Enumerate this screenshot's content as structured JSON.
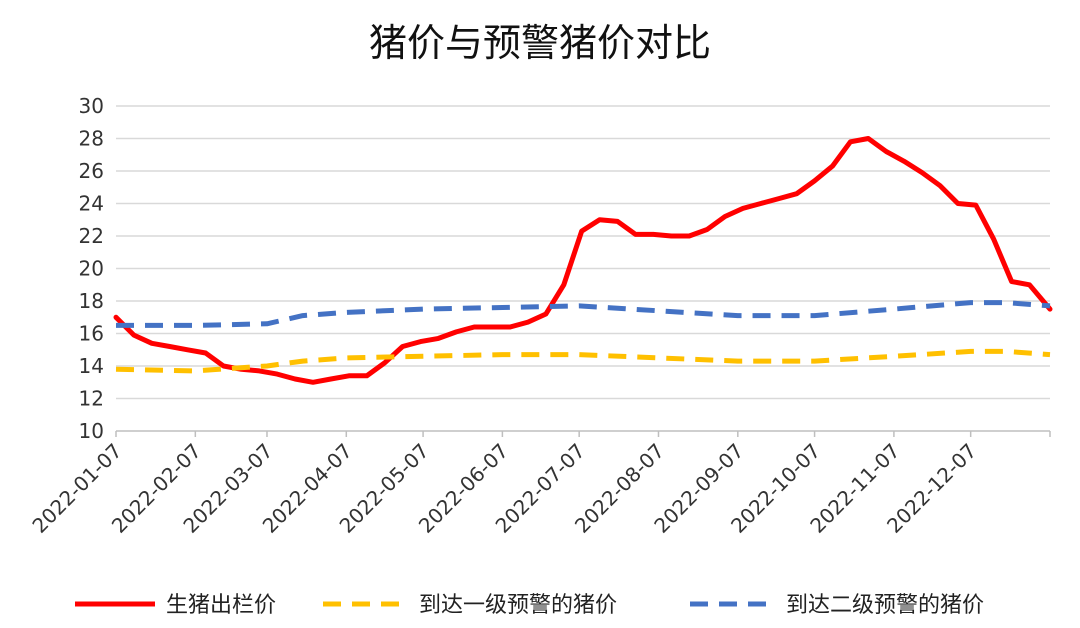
{
  "chart_data": {
    "type": "line",
    "title": "猪价与预警猪价对比",
    "xlabel": "",
    "ylabel": "",
    "ylim": [
      10,
      30
    ],
    "yticks": [
      10,
      12,
      14,
      16,
      18,
      20,
      22,
      24,
      26,
      28,
      30
    ],
    "x_ticks": [
      "2022-01-07",
      "2022-02-07",
      "2022-03-07",
      "2022-04-07",
      "2022-05-07",
      "2022-06-07",
      "2022-07-07",
      "2022-08-07",
      "2022-09-07",
      "2022-10-07",
      "2022-11-07",
      "2022-12-07"
    ],
    "xlim": [
      "2022-01-07",
      "2023-01-07"
    ],
    "grid": "horizontal",
    "legend_position": "bottom",
    "series": [
      {
        "name": "生猪出栏价",
        "color": "#ff0000",
        "style": "solid",
        "points": [
          [
            "2022-01-07",
            17.0
          ],
          [
            "2022-01-14",
            15.9
          ],
          [
            "2022-01-21",
            15.4
          ],
          [
            "2022-01-28",
            15.2
          ],
          [
            "2022-02-04",
            15.0
          ],
          [
            "2022-02-11",
            14.8
          ],
          [
            "2022-02-18",
            14.0
          ],
          [
            "2022-02-25",
            13.8
          ],
          [
            "2022-03-04",
            13.7
          ],
          [
            "2022-03-11",
            13.5
          ],
          [
            "2022-03-18",
            13.2
          ],
          [
            "2022-03-25",
            13.0
          ],
          [
            "2022-04-01",
            13.2
          ],
          [
            "2022-04-08",
            13.4
          ],
          [
            "2022-04-15",
            13.4
          ],
          [
            "2022-04-22",
            14.2
          ],
          [
            "2022-04-29",
            15.2
          ],
          [
            "2022-05-06",
            15.5
          ],
          [
            "2022-05-13",
            15.7
          ],
          [
            "2022-05-20",
            16.1
          ],
          [
            "2022-05-27",
            16.4
          ],
          [
            "2022-06-03",
            16.4
          ],
          [
            "2022-06-10",
            16.4
          ],
          [
            "2022-06-17",
            16.7
          ],
          [
            "2022-06-24",
            17.2
          ],
          [
            "2022-07-01",
            19.0
          ],
          [
            "2022-07-08",
            22.3
          ],
          [
            "2022-07-15",
            23.0
          ],
          [
            "2022-07-22",
            22.9
          ],
          [
            "2022-07-29",
            22.1
          ],
          [
            "2022-08-05",
            22.1
          ],
          [
            "2022-08-12",
            22.0
          ],
          [
            "2022-08-19",
            22.0
          ],
          [
            "2022-08-26",
            22.4
          ],
          [
            "2022-09-02",
            23.2
          ],
          [
            "2022-09-09",
            23.7
          ],
          [
            "2022-09-16",
            24.0
          ],
          [
            "2022-09-23",
            24.3
          ],
          [
            "2022-09-30",
            24.6
          ],
          [
            "2022-10-07",
            25.4
          ],
          [
            "2022-10-14",
            26.3
          ],
          [
            "2022-10-21",
            27.8
          ],
          [
            "2022-10-28",
            28.0
          ],
          [
            "2022-11-04",
            27.2
          ],
          [
            "2022-11-11",
            26.6
          ],
          [
            "2022-11-18",
            25.9
          ],
          [
            "2022-11-25",
            25.1
          ],
          [
            "2022-12-02",
            24.0
          ],
          [
            "2022-12-09",
            23.9
          ],
          [
            "2022-12-16",
            21.8
          ],
          [
            "2022-12-23",
            19.2
          ],
          [
            "2022-12-30",
            19.0
          ],
          [
            "2023-01-07",
            17.5
          ]
        ]
      },
      {
        "name": "到达一级预警的猪价",
        "color": "#ffc000",
        "style": "dashed",
        "points": [
          [
            "2022-01-07",
            13.8
          ],
          [
            "2022-02-07",
            13.7
          ],
          [
            "2022-03-07",
            14.0
          ],
          [
            "2022-03-21",
            14.3
          ],
          [
            "2022-04-07",
            14.5
          ],
          [
            "2022-05-07",
            14.6
          ],
          [
            "2022-06-07",
            14.7
          ],
          [
            "2022-07-07",
            14.7
          ],
          [
            "2022-08-07",
            14.5
          ],
          [
            "2022-09-07",
            14.3
          ],
          [
            "2022-10-07",
            14.3
          ],
          [
            "2022-11-07",
            14.6
          ],
          [
            "2022-12-07",
            14.9
          ],
          [
            "2022-12-21",
            14.9
          ],
          [
            "2023-01-07",
            14.7
          ]
        ]
      },
      {
        "name": "到达二级预警的猪价",
        "color": "#4472c4",
        "style": "dashed",
        "points": [
          [
            "2022-01-07",
            16.5
          ],
          [
            "2022-02-07",
            16.5
          ],
          [
            "2022-03-07",
            16.6
          ],
          [
            "2022-03-21",
            17.1
          ],
          [
            "2022-04-07",
            17.3
          ],
          [
            "2022-05-07",
            17.5
          ],
          [
            "2022-06-07",
            17.6
          ],
          [
            "2022-07-07",
            17.7
          ],
          [
            "2022-08-07",
            17.4
          ],
          [
            "2022-09-07",
            17.1
          ],
          [
            "2022-10-07",
            17.1
          ],
          [
            "2022-11-07",
            17.5
          ],
          [
            "2022-12-07",
            17.9
          ],
          [
            "2022-12-21",
            17.9
          ],
          [
            "2023-01-07",
            17.7
          ]
        ]
      }
    ]
  }
}
